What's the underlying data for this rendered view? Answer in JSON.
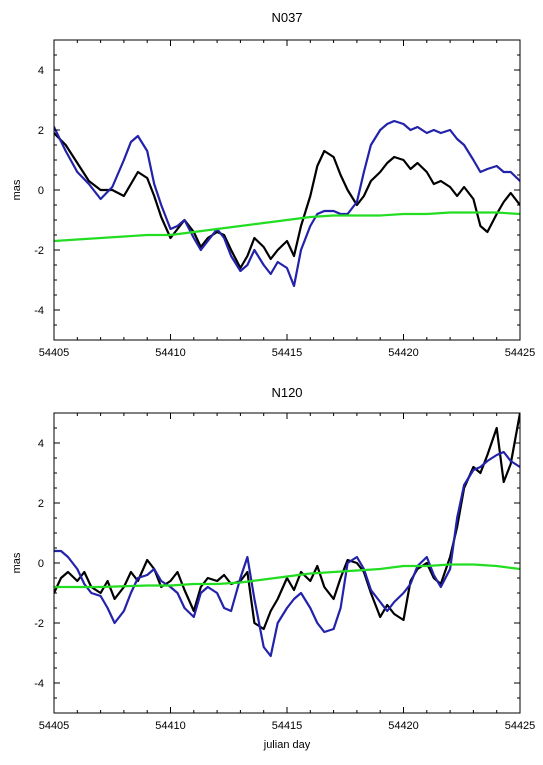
{
  "chart_data": [
    {
      "type": "line",
      "title": "N037",
      "xlabel": "",
      "ylabel": "mas",
      "xlim": [
        54405,
        54425
      ],
      "ylim": [
        -5,
        5
      ],
      "xticks": [
        "54405",
        "54410",
        "54415",
        "54420",
        "54425"
      ],
      "yticks": [
        "-4",
        "-2",
        "0",
        "2",
        "4"
      ],
      "grid": false,
      "series": [
        {
          "color": "#000000",
          "x": [
            54405,
            54405.5,
            54406,
            54406.5,
            54407,
            54407.5,
            54408,
            54408.3,
            54408.6,
            54409,
            54409.3,
            54409.6,
            54410,
            54410.3,
            54410.6,
            54411,
            54411.3,
            54411.6,
            54412,
            54412.3,
            54412.6,
            54413,
            54413.3,
            54413.6,
            54414,
            54414.3,
            54414.6,
            54415,
            54415.3,
            54415.6,
            54416,
            54416.3,
            54416.6,
            54417,
            54417.3,
            54417.6,
            54418,
            54418.3,
            54418.6,
            54419,
            54419.3,
            54419.6,
            54420,
            54420.3,
            54420.6,
            54421,
            54421.3,
            54421.6,
            54422,
            54422.3,
            54422.6,
            54423,
            54423.3,
            54423.6,
            54424,
            54424.3,
            54424.6,
            54425
          ],
          "y": [
            1.9,
            1.5,
            0.9,
            0.3,
            0.0,
            0.0,
            -0.2,
            0.2,
            0.6,
            0.4,
            -0.2,
            -0.9,
            -1.6,
            -1.3,
            -1.0,
            -1.4,
            -1.9,
            -1.6,
            -1.4,
            -1.5,
            -2.0,
            -2.6,
            -2.2,
            -1.6,
            -1.9,
            -2.3,
            -2.0,
            -1.7,
            -2.2,
            -1.2,
            -0.2,
            0.8,
            1.3,
            1.1,
            0.5,
            0.0,
            -0.5,
            -0.2,
            0.3,
            0.6,
            0.9,
            1.1,
            1.0,
            0.7,
            0.9,
            0.6,
            0.2,
            0.3,
            0.1,
            -0.2,
            0.1,
            -0.3,
            -1.2,
            -1.4,
            -0.8,
            -0.4,
            -0.1,
            -0.5
          ]
        },
        {
          "color": "#2222aa",
          "x": [
            54405,
            54405.5,
            54406,
            54406.5,
            54407,
            54407.5,
            54408,
            54408.3,
            54408.6,
            54409,
            54409.3,
            54409.6,
            54410,
            54410.3,
            54410.6,
            54411,
            54411.3,
            54411.6,
            54412,
            54412.3,
            54412.6,
            54413,
            54413.3,
            54413.6,
            54414,
            54414.3,
            54414.6,
            54415,
            54415.3,
            54415.6,
            54416,
            54416.3,
            54416.6,
            54417,
            54417.3,
            54417.6,
            54418,
            54418.3,
            54418.6,
            54419,
            54419.3,
            54419.6,
            54420,
            54420.3,
            54420.6,
            54421,
            54421.3,
            54421.6,
            54422,
            54422.3,
            54422.6,
            54423,
            54423.3,
            54423.6,
            54424,
            54424.3,
            54424.6,
            54425
          ],
          "y": [
            2.1,
            1.3,
            0.6,
            0.2,
            -0.3,
            0.1,
            1.0,
            1.6,
            1.8,
            1.3,
            0.2,
            -0.5,
            -1.3,
            -1.2,
            -1.0,
            -1.6,
            -2.0,
            -1.7,
            -1.3,
            -1.6,
            -2.2,
            -2.7,
            -2.5,
            -2.0,
            -2.5,
            -2.8,
            -2.4,
            -2.6,
            -3.2,
            -2.0,
            -1.2,
            -0.8,
            -0.7,
            -0.7,
            -0.8,
            -0.8,
            -0.4,
            0.6,
            1.5,
            2.0,
            2.2,
            2.3,
            2.2,
            2.0,
            2.1,
            1.9,
            2.0,
            1.9,
            2.0,
            1.7,
            1.5,
            1.0,
            0.6,
            0.7,
            0.8,
            0.6,
            0.6,
            0.3
          ]
        },
        {
          "color": "#22dd22",
          "x": [
            54405,
            54407,
            54409,
            54410,
            54411,
            54412,
            54413,
            54414,
            54415,
            54416,
            54417,
            54418,
            54419,
            54420,
            54421,
            54422,
            54423,
            54424,
            54425
          ],
          "y": [
            -1.7,
            -1.6,
            -1.5,
            -1.5,
            -1.4,
            -1.3,
            -1.2,
            -1.1,
            -1.0,
            -0.9,
            -0.85,
            -0.85,
            -0.85,
            -0.8,
            -0.8,
            -0.75,
            -0.75,
            -0.75,
            -0.8
          ]
        }
      ]
    },
    {
      "type": "line",
      "title": "N120",
      "xlabel": "julian day",
      "ylabel": "mas",
      "xlim": [
        54405,
        54425
      ],
      "ylim": [
        -5,
        5
      ],
      "xticks": [
        "54405",
        "54410",
        "54415",
        "54420",
        "54425"
      ],
      "yticks": [
        "-4",
        "-2",
        "0",
        "2",
        "4"
      ],
      "grid": false,
      "series": [
        {
          "color": "#000000",
          "x": [
            54405,
            54405.3,
            54405.6,
            54406,
            54406.3,
            54406.6,
            54407,
            54407.3,
            54407.6,
            54408,
            54408.3,
            54408.6,
            54409,
            54409.3,
            54409.6,
            54410,
            54410.3,
            54410.6,
            54411,
            54411.3,
            54411.6,
            54412,
            54412.3,
            54412.6,
            54413,
            54413.3,
            54413.6,
            54414,
            54414.3,
            54414.6,
            54415,
            54415.3,
            54415.6,
            54416,
            54416.3,
            54416.6,
            54417,
            54417.3,
            54417.6,
            54418,
            54418.3,
            54418.6,
            54419,
            54419.3,
            54419.6,
            54420,
            54420.3,
            54420.6,
            54421,
            54421.3,
            54421.6,
            54422,
            54422.3,
            54422.6,
            54423,
            54423.3,
            54423.6,
            54424,
            54424.3,
            54424.6,
            54425
          ],
          "y": [
            -1.0,
            -0.5,
            -0.3,
            -0.6,
            -0.3,
            -0.8,
            -1.0,
            -0.6,
            -1.2,
            -0.8,
            -0.3,
            -0.6,
            0.1,
            -0.2,
            -0.8,
            -0.6,
            -0.3,
            -0.9,
            -1.6,
            -0.8,
            -0.5,
            -0.6,
            -0.4,
            -0.7,
            -0.6,
            -0.3,
            -2.0,
            -2.2,
            -1.6,
            -1.2,
            -0.5,
            -0.9,
            -0.3,
            -0.6,
            -0.1,
            -0.8,
            -1.2,
            -0.5,
            0.1,
            0.0,
            -0.3,
            -1.0,
            -1.8,
            -1.4,
            -1.7,
            -1.9,
            -0.6,
            -0.2,
            0.0,
            -0.5,
            -0.7,
            0.2,
            1.2,
            2.5,
            3.2,
            3.0,
            3.6,
            4.5,
            2.7,
            3.3,
            5.0
          ]
        },
        {
          "color": "#2222aa",
          "x": [
            54405,
            54405.3,
            54405.6,
            54406,
            54406.3,
            54406.6,
            54407,
            54407.3,
            54407.6,
            54408,
            54408.3,
            54408.6,
            54409,
            54409.3,
            54409.6,
            54410,
            54410.3,
            54410.6,
            54411,
            54411.3,
            54411.6,
            54412,
            54412.3,
            54412.6,
            54413,
            54413.3,
            54413.6,
            54414,
            54414.3,
            54414.6,
            54415,
            54415.3,
            54415.6,
            54416,
            54416.3,
            54416.6,
            54417,
            54417.3,
            54417.6,
            54418,
            54418.3,
            54418.6,
            54419,
            54419.3,
            54419.6,
            54420,
            54420.3,
            54420.6,
            54421,
            54421.3,
            54421.6,
            54422,
            54422.3,
            54422.6,
            54423,
            54423.3,
            54423.6,
            54424,
            54424.3,
            54424.6,
            54425
          ],
          "y": [
            0.4,
            0.4,
            0.2,
            -0.2,
            -0.7,
            -1.0,
            -1.1,
            -1.5,
            -2.0,
            -1.6,
            -1.0,
            -0.5,
            -0.4,
            -0.2,
            -0.6,
            -0.8,
            -1.0,
            -1.5,
            -1.8,
            -1.0,
            -0.8,
            -1.0,
            -1.5,
            -1.6,
            -0.5,
            0.2,
            -1.2,
            -2.8,
            -3.1,
            -2.0,
            -1.5,
            -1.2,
            -1.0,
            -1.5,
            -2.0,
            -2.3,
            -2.2,
            -1.5,
            0.0,
            0.2,
            -0.2,
            -0.9,
            -1.3,
            -1.6,
            -1.3,
            -1.0,
            -0.7,
            -0.1,
            0.2,
            -0.4,
            -0.8,
            -0.2,
            1.5,
            2.6,
            3.1,
            3.2,
            3.4,
            3.6,
            3.7,
            3.4,
            3.2
          ]
        },
        {
          "color": "#22dd22",
          "x": [
            54405,
            54407,
            54409,
            54410,
            54411,
            54412,
            54413,
            54414,
            54415,
            54416,
            54417,
            54418,
            54419,
            54420,
            54421,
            54422,
            54423,
            54424,
            54425
          ],
          "y": [
            -0.8,
            -0.8,
            -0.75,
            -0.75,
            -0.7,
            -0.7,
            -0.65,
            -0.55,
            -0.45,
            -0.35,
            -0.3,
            -0.25,
            -0.2,
            -0.1,
            -0.1,
            -0.05,
            -0.05,
            -0.1,
            -0.2
          ]
        }
      ]
    }
  ]
}
